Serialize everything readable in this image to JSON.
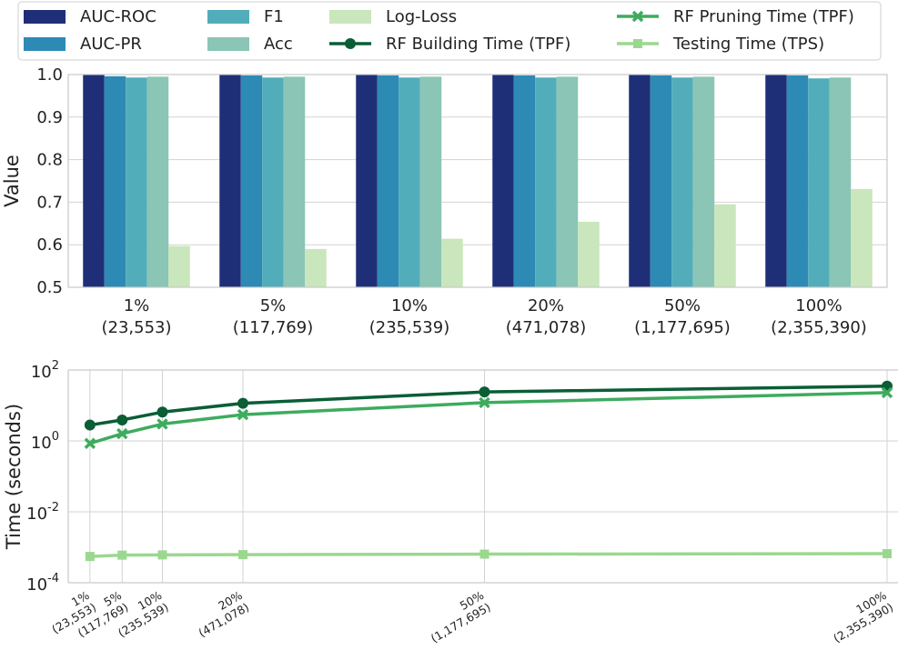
{
  "chart_data": [
    {
      "type": "bar",
      "ylabel": "Value",
      "ylim": [
        0.5,
        1.0
      ],
      "yticks": [
        "0.5",
        "0.6",
        "0.7",
        "0.8",
        "0.9",
        "1.0"
      ],
      "grid": true,
      "categories": [
        [
          "1%",
          "(23,553)"
        ],
        [
          "5%",
          "(117,769)"
        ],
        [
          "10%",
          "(235,539)"
        ],
        [
          "20%",
          "(471,078)"
        ],
        [
          "50%",
          "(1,177,695)"
        ],
        [
          "100%",
          "(2,355,390)"
        ]
      ],
      "series": [
        {
          "name": "AUC-ROC",
          "color": "#1e2f78",
          "values": [
            0.999,
            0.999,
            0.999,
            0.999,
            0.999,
            0.999
          ]
        },
        {
          "name": "AUC-PR",
          "color": "#2d8ab5",
          "values": [
            0.996,
            0.998,
            0.998,
            0.998,
            0.998,
            0.998
          ]
        },
        {
          "name": "F1",
          "color": "#52adbb",
          "values": [
            0.993,
            0.993,
            0.993,
            0.993,
            0.993,
            0.991
          ]
        },
        {
          "name": "Acc",
          "color": "#8ac5b5",
          "values": [
            0.995,
            0.995,
            0.995,
            0.995,
            0.995,
            0.993
          ]
        },
        {
          "name": "Log-Loss",
          "color": "#cae6bc",
          "values": [
            0.597,
            0.59,
            0.614,
            0.654,
            0.695,
            0.731
          ]
        }
      ]
    },
    {
      "type": "line",
      "ylabel": "Time (seconds)",
      "yscale": "log",
      "ylim": [
        0.0001,
        100
      ],
      "yticks": [
        {
          "base": "10",
          "exp": "2"
        },
        {
          "base": "10",
          "exp": "0"
        },
        {
          "base": "10",
          "exp": "-2"
        },
        {
          "base": "10",
          "exp": "-4"
        }
      ],
      "x": [
        1,
        5,
        10,
        20,
        50,
        100
      ],
      "xlim": [
        0,
        100
      ],
      "xticklabels": [
        [
          "1%",
          "(23,553)"
        ],
        [
          "5%",
          "(117,769)"
        ],
        [
          "10%",
          "(235,539)"
        ],
        [
          "20%",
          "(471,078)"
        ],
        [
          "50%",
          "(1,177,695)"
        ],
        [
          "100%",
          "(2,355,390)"
        ]
      ],
      "grid": true,
      "series": [
        {
          "name": "RF Building Time (TPF)",
          "color": "#0a5e36",
          "marker": "circle",
          "values": [
            2.8,
            3.9,
            6.5,
            11.5,
            24,
            35
          ]
        },
        {
          "name": "RF Pruning Time (TPF)",
          "color": "#3eab5e",
          "marker": "x",
          "values": [
            0.85,
            1.6,
            3.0,
            5.5,
            12,
            23
          ]
        },
        {
          "name": "Testing Time (TPS)",
          "color": "#9bd88f",
          "marker": "square",
          "values": [
            0.00055,
            0.0006,
            0.00061,
            0.00062,
            0.00064,
            0.00066
          ]
        }
      ]
    }
  ],
  "legend": {
    "position": "top",
    "items": [
      {
        "label": "AUC-ROC",
        "kind": "patch",
        "color": "#1e2f78"
      },
      {
        "label": "AUC-PR",
        "kind": "patch",
        "color": "#2d8ab5"
      },
      {
        "label": "F1",
        "kind": "patch",
        "color": "#52adbb"
      },
      {
        "label": "Acc",
        "kind": "patch",
        "color": "#8ac5b5"
      },
      {
        "label": "Log-Loss",
        "kind": "patch",
        "color": "#cae6bc"
      },
      {
        "label": "RF Building Time (TPF)",
        "kind": "line-circle",
        "color": "#0a5e36"
      },
      {
        "label": "RF Pruning Time (TPF)",
        "kind": "line-x",
        "color": "#3eab5e"
      },
      {
        "label": "Testing Time (TPS)",
        "kind": "line-square",
        "color": "#9bd88f"
      }
    ]
  }
}
